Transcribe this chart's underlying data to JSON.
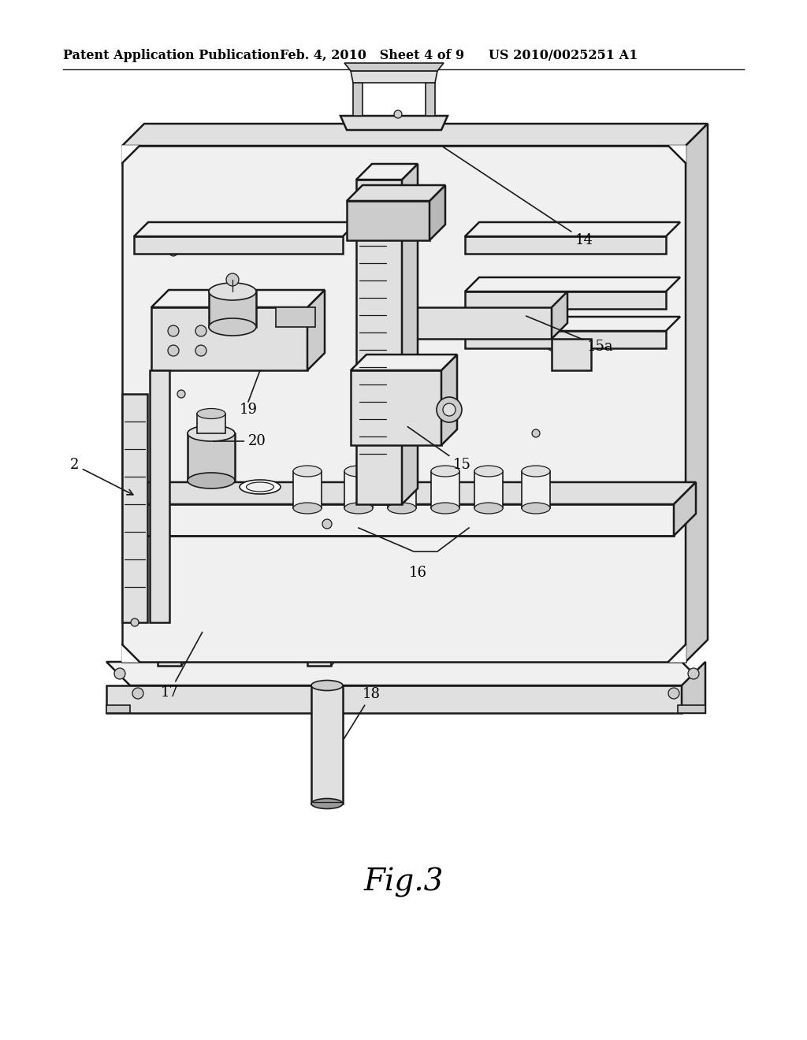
{
  "background_color": "#ffffff",
  "header_left": "Patent Application Publication",
  "header_center": "Feb. 4, 2010   Sheet 4 of 9",
  "header_right": "US 2010/0025251 A1",
  "figure_label": "Fig.3",
  "line_color": "#1a1a1a",
  "fill_light": "#f0f0f0",
  "fill_mid": "#e0e0e0",
  "fill_dark": "#cccccc",
  "fill_darker": "#b8b8b8"
}
